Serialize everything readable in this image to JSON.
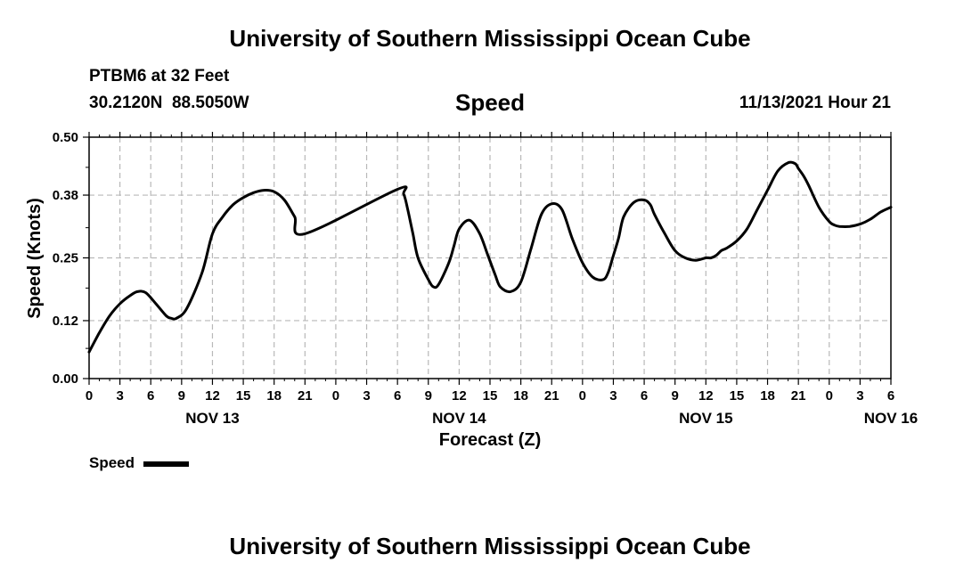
{
  "header": {
    "title": "University of Southern Mississippi Ocean Cube",
    "station": "PTBM6 at 32 Feet",
    "coords": "30.2120N  88.5050W",
    "variable": "Speed",
    "timestamp": "11/13/2021 Hour 21"
  },
  "footer": {
    "title": "University of Southern Mississippi Ocean Cube"
  },
  "legend": {
    "label": "Speed"
  },
  "chart_data": {
    "type": "line",
    "title": "Speed",
    "xlabel": "Forecast (Z)",
    "ylabel": "Speed (Knots)",
    "ylim": [
      0,
      0.5
    ],
    "yticks": [
      "0.00",
      "0.12",
      "0.25",
      "0.38",
      "0.50"
    ],
    "xlim_hours": [
      0,
      78
    ],
    "xtick_labels": [
      "0",
      "3",
      "6",
      "9",
      "12",
      "15",
      "18",
      "21",
      "0",
      "3",
      "6",
      "9",
      "12",
      "15",
      "18",
      "21",
      "0",
      "3",
      "6",
      "9",
      "12",
      "15",
      "18",
      "21",
      "0",
      "3",
      "6"
    ],
    "date_labels": [
      {
        "label": "NOV 13",
        "hour": 12
      },
      {
        "label": "NOV 14",
        "hour": 36
      },
      {
        "label": "NOV 15",
        "hour": 60
      },
      {
        "label": "NOV 16",
        "hour": 78
      }
    ],
    "grid": true,
    "legend_position": "bottom-left",
    "line_color": "#000000",
    "series": [
      {
        "name": "Speed",
        "x": [
          0,
          1,
          2,
          3,
          4,
          4.7,
          5.5,
          6.5,
          7.5,
          8,
          8.5,
          9.5,
          11,
          12,
          13,
          14,
          15,
          16,
          17,
          18,
          19,
          20,
          21,
          30,
          30.6,
          31,
          31.5,
          32,
          33,
          33.5,
          34,
          35,
          35.5,
          36,
          37,
          38,
          38.8,
          39.5,
          40,
          41,
          42,
          43,
          44,
          45,
          46,
          47,
          48,
          49,
          50,
          50.5,
          51,
          51.5,
          52,
          53,
          54,
          54.6,
          55,
          56,
          57,
          58,
          59,
          60,
          60.5,
          61,
          61.5,
          62,
          63,
          64,
          65,
          66,
          67,
          68,
          68.7,
          69,
          69.5,
          70,
          71,
          72,
          72.5,
          73,
          74,
          75,
          76,
          77,
          78
        ],
        "values": [
          0.055,
          0.095,
          0.13,
          0.155,
          0.172,
          0.18,
          0.178,
          0.155,
          0.13,
          0.125,
          0.125,
          0.145,
          0.22,
          0.3,
          0.335,
          0.36,
          0.375,
          0.385,
          0.39,
          0.387,
          0.37,
          0.335,
          0.3,
          0.392,
          0.382,
          0.35,
          0.3,
          0.25,
          0.205,
          0.19,
          0.195,
          0.24,
          0.275,
          0.31,
          0.328,
          0.3,
          0.255,
          0.215,
          0.19,
          0.18,
          0.2,
          0.27,
          0.34,
          0.362,
          0.35,
          0.29,
          0.24,
          0.21,
          0.205,
          0.22,
          0.255,
          0.29,
          0.335,
          0.365,
          0.37,
          0.36,
          0.34,
          0.3,
          0.265,
          0.25,
          0.245,
          0.25,
          0.25,
          0.255,
          0.265,
          0.27,
          0.285,
          0.31,
          0.35,
          0.39,
          0.43,
          0.447,
          0.445,
          0.435,
          0.42,
          0.4,
          0.355,
          0.325,
          0.318,
          0.315,
          0.315,
          0.32,
          0.33,
          0.345,
          0.355
        ]
      }
    ]
  }
}
